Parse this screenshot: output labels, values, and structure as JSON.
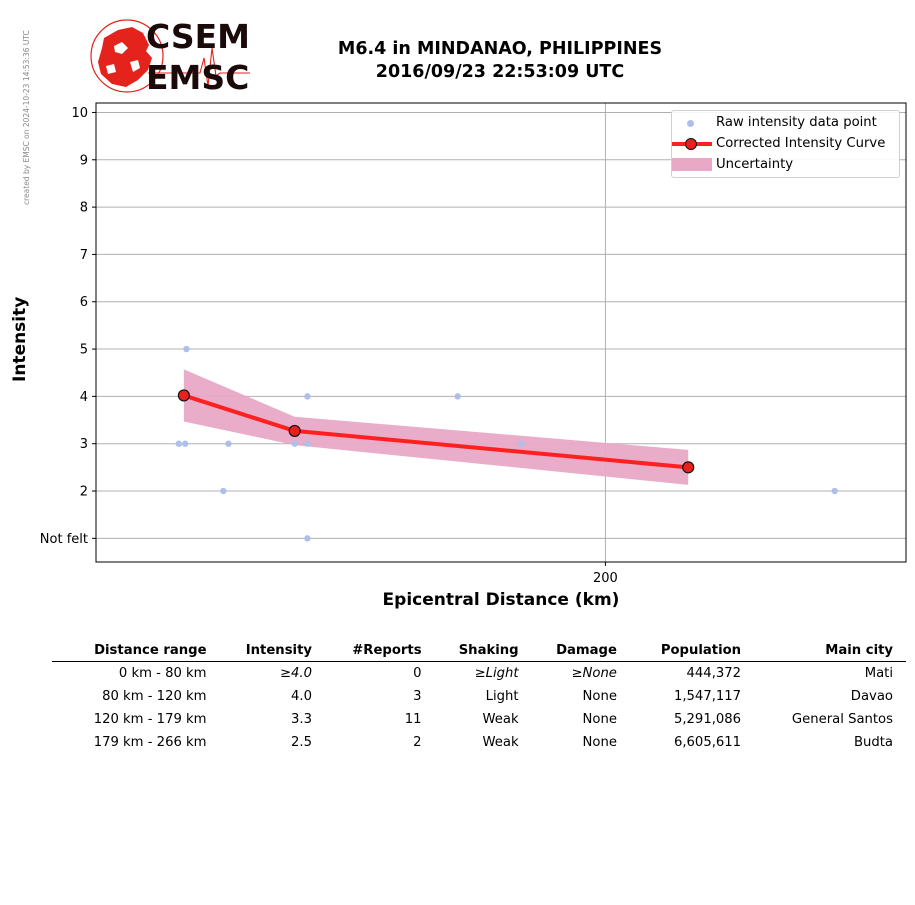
{
  "watermark": "created by EMSC on 2024-10-23 14:53:36 UTC",
  "logo": {
    "top_text": "CSEM",
    "bottom_text": "EMSC"
  },
  "title": {
    "line1": "M6.4 in MINDANAO, PHILIPPINES",
    "line2": "2016/09/23 22:53:09 UTC"
  },
  "colors": {
    "raw_points": "#aec0ea",
    "curve": "#ff2020",
    "curve_marker": "#e82020",
    "uncertainty": "#e8a8c6",
    "logo_red": "#e3231c"
  },
  "chart_data": {
    "type": "scatter",
    "xlabel": "Epicentral Distance (km)",
    "ylabel": "Intensity",
    "xlim": [
      0,
      318
    ],
    "ylim": [
      0.5,
      10.2
    ],
    "x_ticks": [
      200
    ],
    "y_ticks": [
      1,
      2,
      3,
      4,
      5,
      6,
      7,
      8,
      9,
      10
    ],
    "y_tick_labels": [
      "Not felt",
      "2",
      "3",
      "4",
      "5",
      "6",
      "7",
      "8",
      "9",
      "10"
    ],
    "grid": true,
    "legend_position": "top-right",
    "legend": [
      "Raw intensity data point",
      "Corrected Intensity Curve",
      "Uncertainty"
    ],
    "series": [
      {
        "name": "Raw intensity data point",
        "type": "scatter",
        "points": [
          [
            35.5,
            5
          ],
          [
            32.5,
            3
          ],
          [
            35,
            3
          ],
          [
            52,
            3
          ],
          [
            50,
            2
          ],
          [
            83,
            4
          ],
          [
            142,
            4
          ],
          [
            78,
            3
          ],
          [
            83,
            3
          ],
          [
            167,
            3
          ],
          [
            83,
            1
          ],
          [
            290,
            2
          ]
        ]
      },
      {
        "name": "Corrected Intensity Curve",
        "type": "line",
        "points": [
          [
            34.5,
            4.02
          ],
          [
            78,
            3.27
          ],
          [
            232.5,
            2.5
          ]
        ]
      },
      {
        "name": "Uncertainty",
        "type": "area",
        "upper": [
          [
            34.5,
            4.57
          ],
          [
            78,
            3.57
          ],
          [
            232.5,
            2.87
          ]
        ],
        "lower": [
          [
            34.5,
            3.47
          ],
          [
            78,
            2.97
          ],
          [
            232.5,
            2.13
          ]
        ]
      }
    ]
  },
  "table": {
    "headers": [
      "Distance range",
      "Intensity",
      "#Reports",
      "Shaking",
      "Damage",
      "Population",
      "Main city"
    ],
    "rows": [
      {
        "range": "0 km -   80 km",
        "intensity": "≥4.0",
        "reports": "0",
        "shaking": "≥Light",
        "damage": "≥None",
        "population": "444,372",
        "city": "Mati"
      },
      {
        "range": "80 km -  120 km",
        "intensity": "4.0",
        "reports": "3",
        "shaking": "Light",
        "damage": "None",
        "population": "1,547,117",
        "city": "Davao"
      },
      {
        "range": "120 km -  179 km",
        "intensity": "3.3",
        "reports": "11",
        "shaking": "Weak",
        "damage": "None",
        "population": "5,291,086",
        "city": "General Santos"
      },
      {
        "range": "179 km -  266 km",
        "intensity": "2.5",
        "reports": "2",
        "shaking": "Weak",
        "damage": "None",
        "population": "6,605,611",
        "city": "Budta"
      }
    ]
  }
}
